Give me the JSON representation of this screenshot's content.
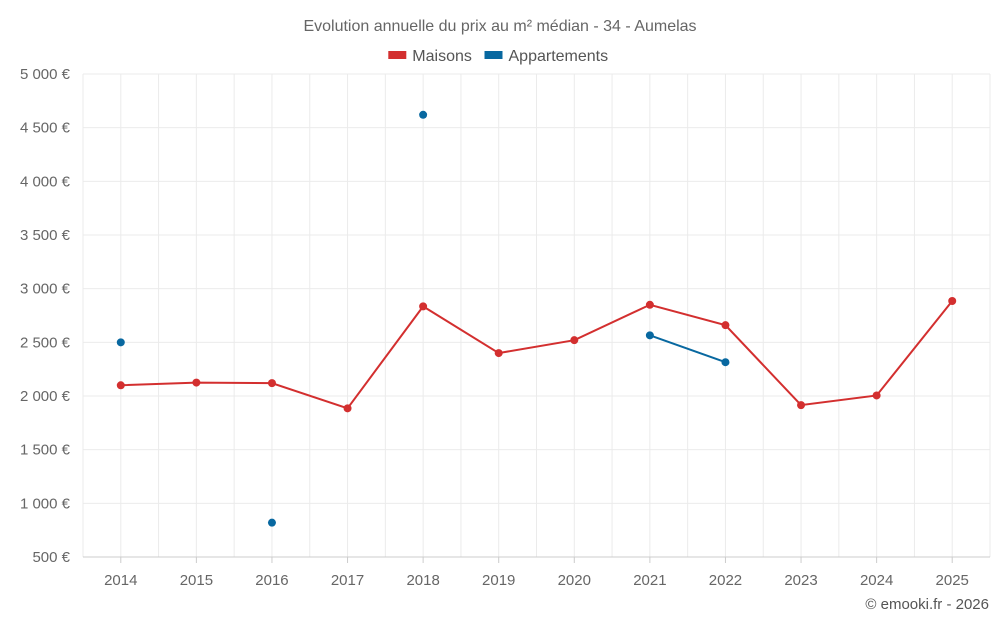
{
  "chart_data": {
    "type": "line",
    "title": "Evolution annuelle du prix au m² médian - 34 - Aumelas",
    "categories": [
      "2014",
      "2015",
      "2016",
      "2017",
      "2018",
      "2019",
      "2020",
      "2021",
      "2022",
      "2023",
      "2024",
      "2025"
    ],
    "ylim": [
      500,
      5000
    ],
    "yticks": [
      500,
      1000,
      1500,
      2000,
      2500,
      3000,
      3500,
      4000,
      4500,
      5000
    ],
    "ytick_labels": [
      "500 €",
      "1 000 €",
      "1 500 €",
      "2 000 €",
      "2 500 €",
      "3 000 €",
      "3 500 €",
      "4 000 €",
      "4 500 €",
      "5 000 €"
    ],
    "grid": true,
    "legend_position": "top-center",
    "series": [
      {
        "name": "Maisons",
        "color": "#d32f2f",
        "values": [
          2100,
          2125,
          2120,
          1885,
          2835,
          2400,
          2520,
          2850,
          2660,
          1915,
          2005,
          2885
        ]
      },
      {
        "name": "Appartements",
        "color": "#0868a0",
        "values": [
          2500,
          null,
          820,
          null,
          4620,
          null,
          null,
          2565,
          2315,
          null,
          null,
          null
        ]
      }
    ],
    "credit": "© emooki.fr - 2026"
  }
}
